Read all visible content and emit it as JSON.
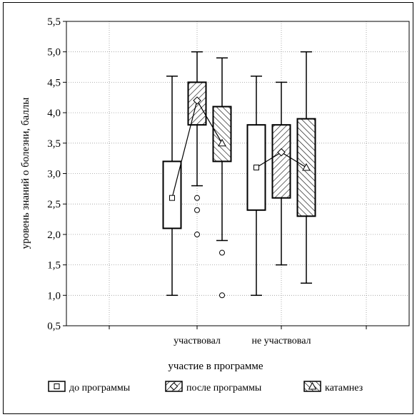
{
  "chart_data": {
    "type": "boxplot",
    "ylabel": "уровень знаний о болезни, баллы",
    "xlabel": "участие в программе",
    "ylim": [
      0.5,
      5.5
    ],
    "yticks": [
      "0,5",
      "1,0",
      "1,5",
      "2,0",
      "2,5",
      "3,0",
      "3,5",
      "4,0",
      "4,5",
      "5,0",
      "5,5"
    ],
    "grid": true,
    "legend_position": "bottom",
    "categories": [
      "участвовал",
      "не участвовал"
    ],
    "series": [
      {
        "name": "до программы",
        "marker": "square",
        "fill": "none",
        "boxes": [
          {
            "median": 2.6,
            "q1": 2.1,
            "q3": 3.2,
            "min": 1.0,
            "max": 4.6,
            "outliers": []
          },
          {
            "median": 3.1,
            "q1": 2.4,
            "q3": 3.8,
            "min": 1.0,
            "max": 4.6,
            "outliers": []
          }
        ]
      },
      {
        "name": "после программы",
        "marker": "diamond",
        "fill": "hatch-right",
        "boxes": [
          {
            "median": 4.2,
            "q1": 3.8,
            "q3": 4.5,
            "min": 2.8,
            "max": 5.0,
            "outliers": [
              2.6,
              2.4,
              2.0
            ]
          },
          {
            "median": 3.35,
            "q1": 2.6,
            "q3": 3.8,
            "min": 1.5,
            "max": 4.5,
            "outliers": []
          }
        ]
      },
      {
        "name": "катамнез",
        "marker": "triangle",
        "fill": "hatch-left",
        "boxes": [
          {
            "median": 3.5,
            "q1": 3.2,
            "q3": 4.1,
            "min": 1.9,
            "max": 4.9,
            "outliers": [
              1.7,
              1.0
            ]
          },
          {
            "median": 3.1,
            "q1": 2.3,
            "q3": 3.9,
            "min": 1.2,
            "max": 5.0,
            "outliers": []
          }
        ]
      }
    ]
  }
}
